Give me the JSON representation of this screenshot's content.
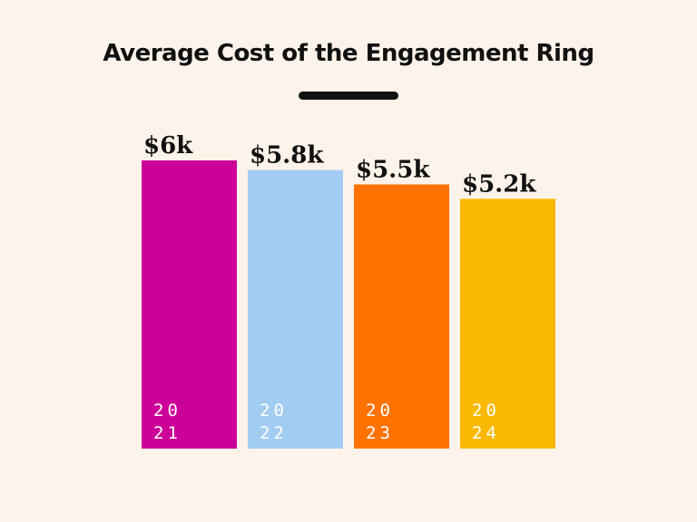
{
  "chart_data": {
    "type": "bar",
    "title": "Average Cost of the Engagement Ring",
    "categories": [
      "2021",
      "2022",
      "2023",
      "2024"
    ],
    "values": [
      6.0,
      5.8,
      5.5,
      5.2
    ],
    "value_labels": [
      "$6k",
      "$5.8k",
      "$5.5k",
      "$5.2k"
    ],
    "category_label_lines": [
      [
        "20",
        "21"
      ],
      [
        "20",
        "22"
      ],
      [
        "20",
        "23"
      ],
      [
        "20",
        "24"
      ]
    ],
    "unit": "thousand USD",
    "colors": [
      "#cc0099",
      "#a3ccf3",
      "#ff7200",
      "#fbb902"
    ],
    "background": "#fdf3ea",
    "ylim": [
      0,
      6
    ],
    "grid": false,
    "legend": "none"
  }
}
